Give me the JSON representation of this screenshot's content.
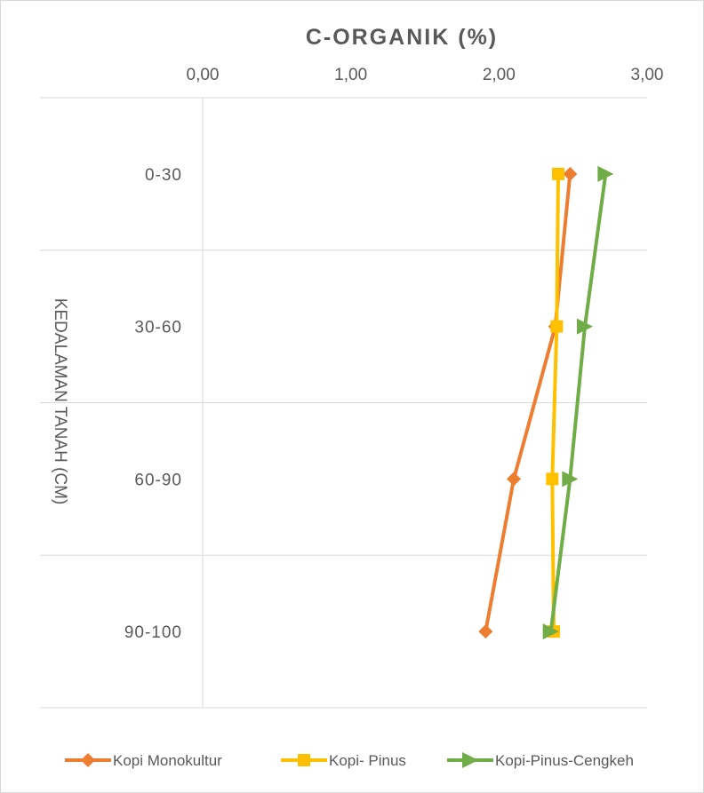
{
  "chart_data": {
    "type": "line",
    "orientation": "horizontal-values, vertical-categories",
    "title": "C-ORGANIK (%)",
    "xlabel": "",
    "ylabel": "KEDALAMAN TANAH (CM)",
    "x_axis_position": "top",
    "xlim": [
      0,
      3
    ],
    "x_ticks": [
      0,
      1,
      2,
      3
    ],
    "x_tick_labels": [
      "0,00",
      "1,00",
      "2,00",
      "3,00"
    ],
    "categories": [
      "0-30",
      "30-60",
      "60-90",
      "90-100"
    ],
    "grid": true,
    "legend_position": "bottom",
    "series": [
      {
        "name": "Kopi Monokultur",
        "values": [
          2.48,
          2.38,
          2.1,
          1.91
        ],
        "color": "#ED7D31",
        "marker": "diamond"
      },
      {
        "name": "Kopi- Pinus",
        "values": [
          2.4,
          2.39,
          2.36,
          2.37
        ],
        "color": "#FFC000",
        "marker": "square"
      },
      {
        "name": "Kopi-Pinus-Cengkeh",
        "values": [
          2.72,
          2.58,
          2.48,
          2.35
        ],
        "color": "#70AD47",
        "marker": "triangle"
      }
    ]
  }
}
